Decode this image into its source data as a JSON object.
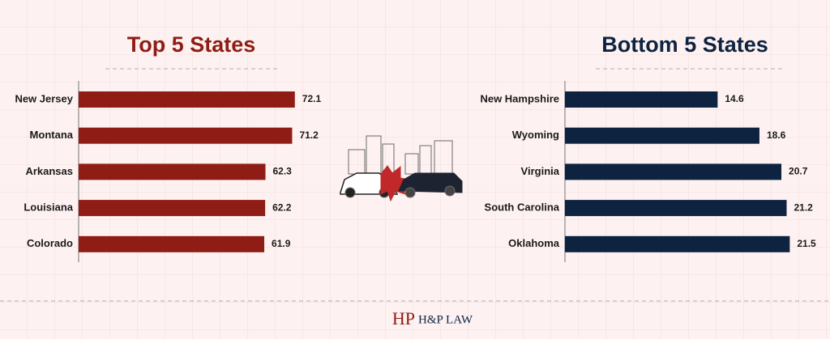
{
  "chart_data": [
    {
      "type": "barh",
      "title": "Top 5 States",
      "color": "#8f1d15",
      "categories": [
        "New Jersey",
        "Montana",
        "Arkansas",
        "Louisiana",
        "Colorado"
      ],
      "values": [
        72.1,
        71.2,
        62.3,
        62.2,
        61.9
      ]
    },
    {
      "type": "barh",
      "title": "Bottom 5 States",
      "color": "#0e2340",
      "categories": [
        "New Hampshire",
        "Wyoming",
        "Virginia",
        "South Carolina",
        "Oklahoma"
      ],
      "values": [
        14.6,
        18.6,
        20.7,
        21.2,
        21.5
      ]
    }
  ],
  "logo_mark": "HP",
  "brand": "H&P LAW"
}
